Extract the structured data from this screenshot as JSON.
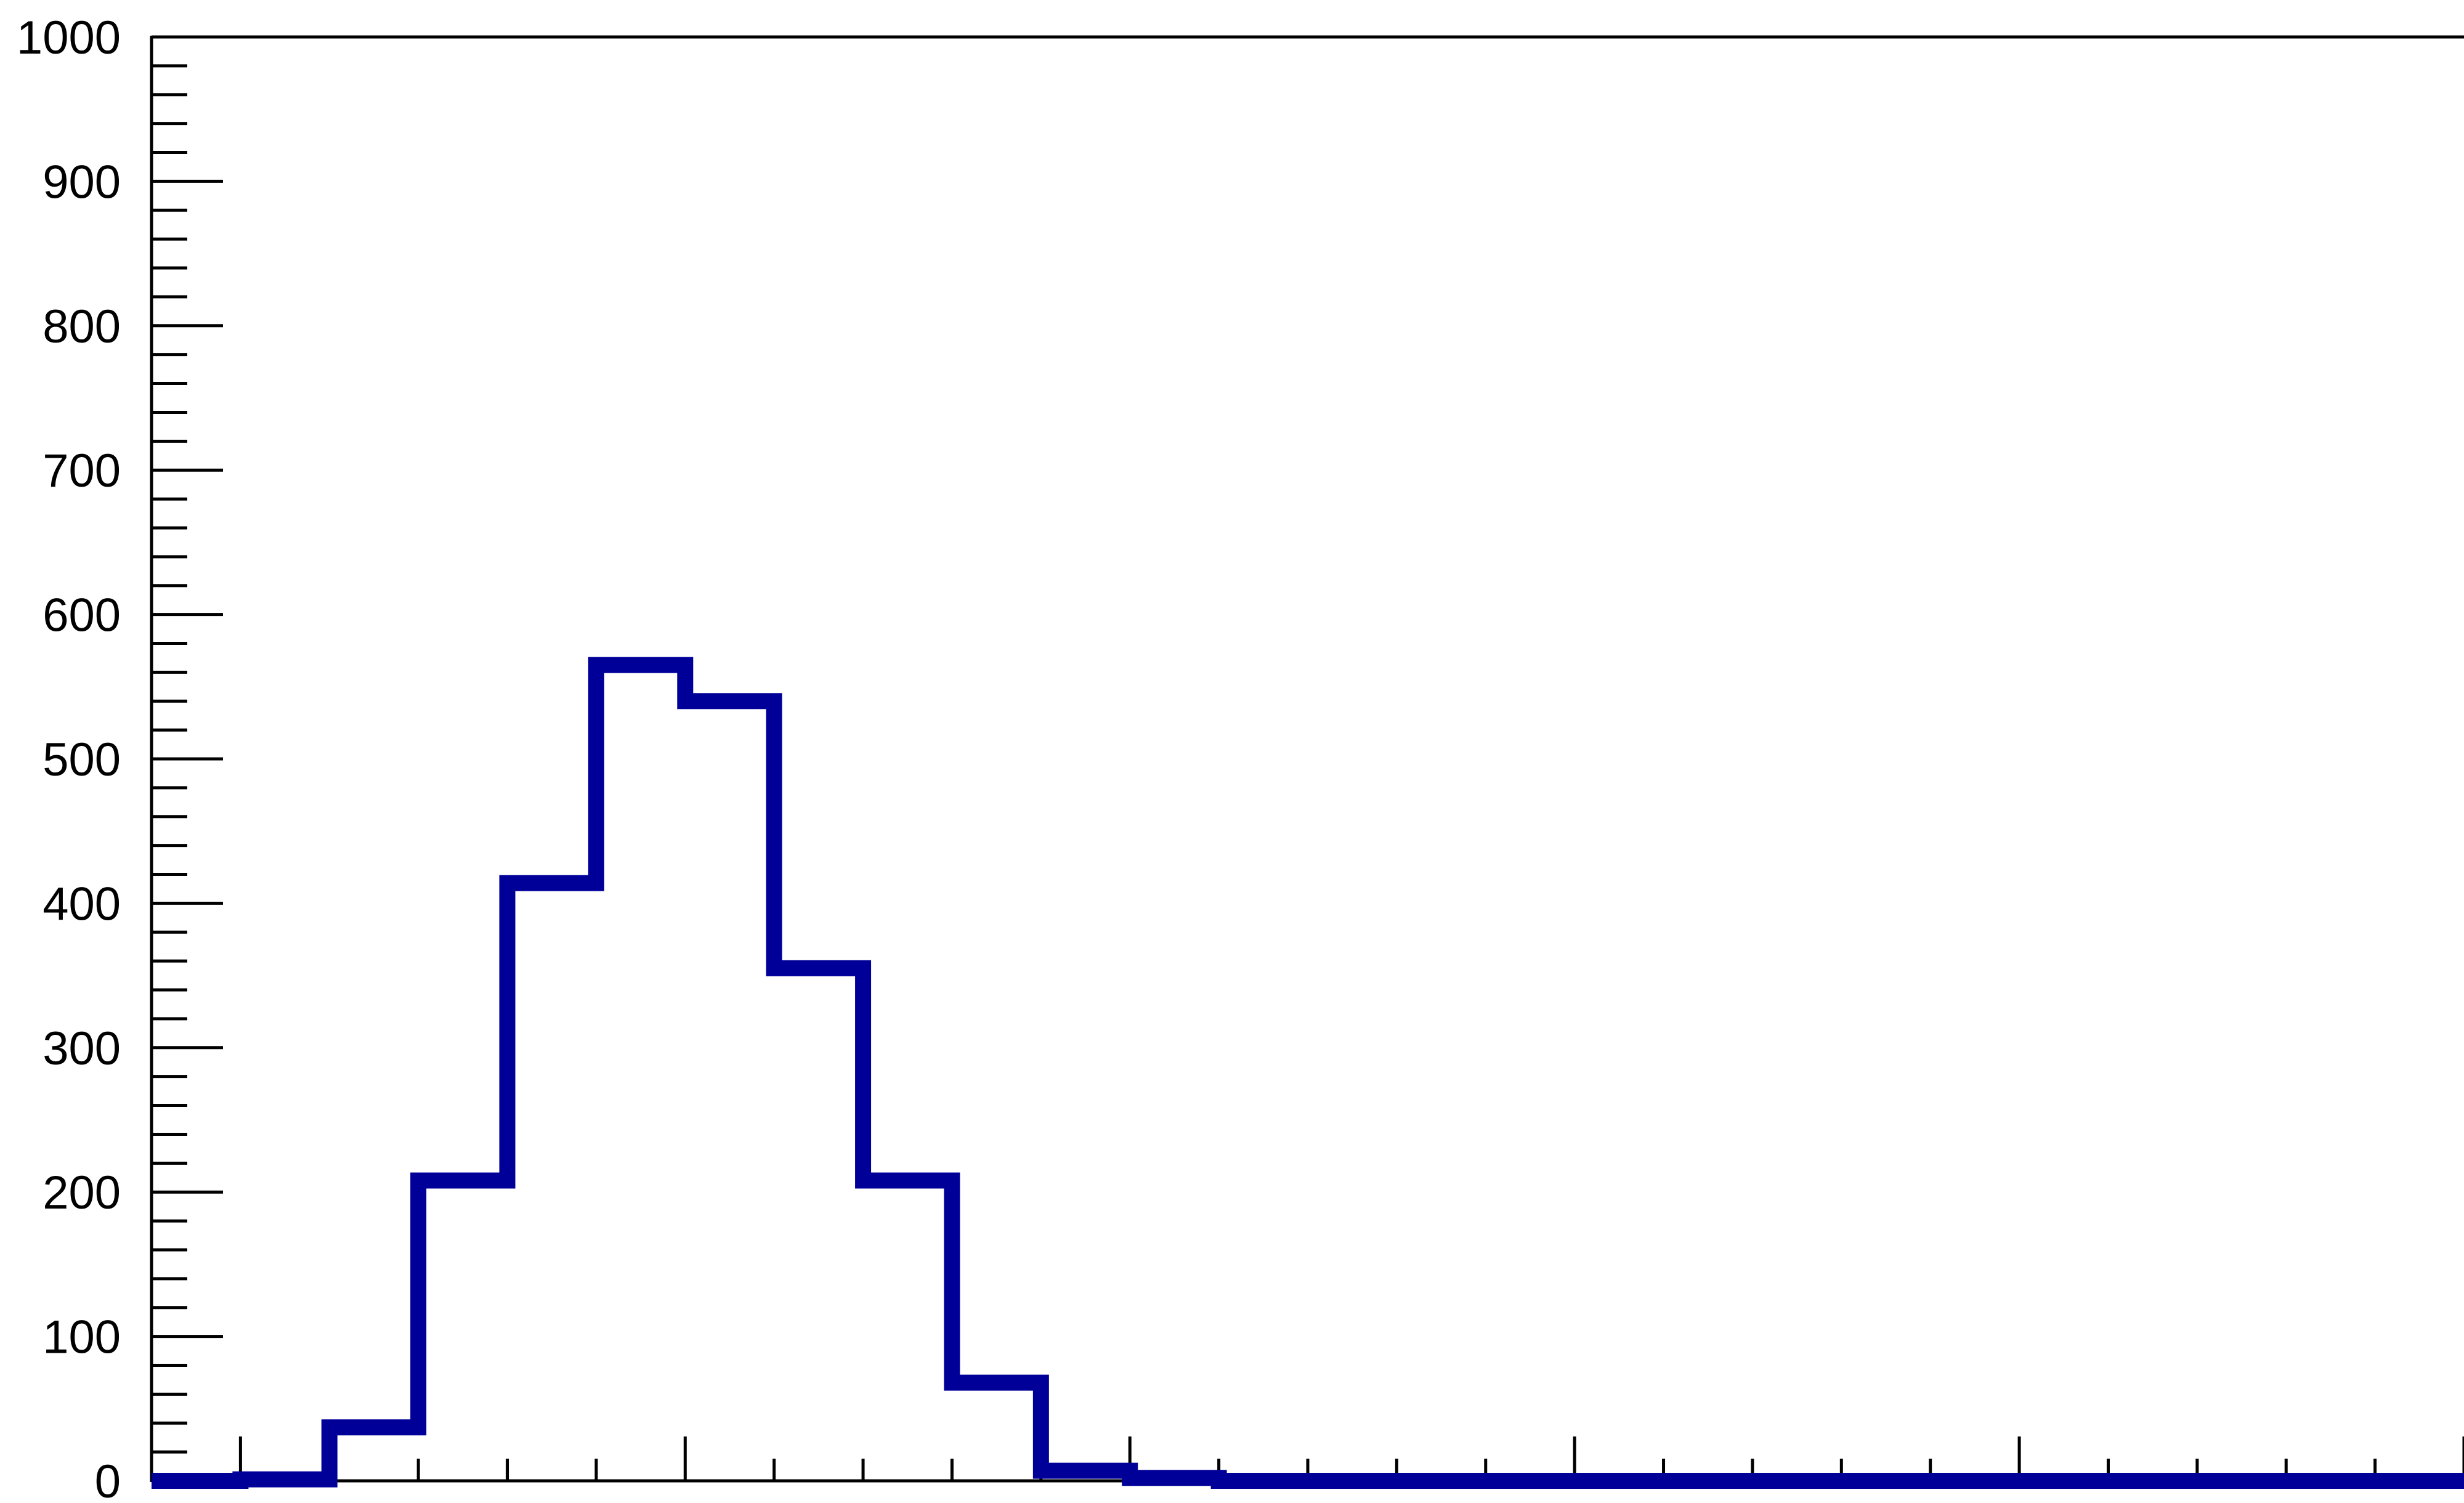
{
  "chart_data": {
    "type": "histogram",
    "title": "",
    "xlabel": "",
    "ylabel": "",
    "ylim": [
      0,
      1000
    ],
    "y_ticks": [
      "0",
      "100",
      "200",
      "300",
      "400",
      "500",
      "600",
      "700",
      "800",
      "900",
      "1000"
    ],
    "x_tick_labels_visible": false,
    "bins": 26,
    "series": [
      {
        "color": "#000099",
        "values": [
          0,
          1,
          37,
          208,
          414,
          565,
          540,
          355,
          208,
          68,
          7,
          2,
          0,
          0,
          0,
          0,
          0,
          0,
          0,
          0,
          0,
          0,
          0,
          0,
          0,
          0
        ]
      }
    ],
    "grid": false,
    "legend": "none",
    "frame_color": "#000000"
  }
}
